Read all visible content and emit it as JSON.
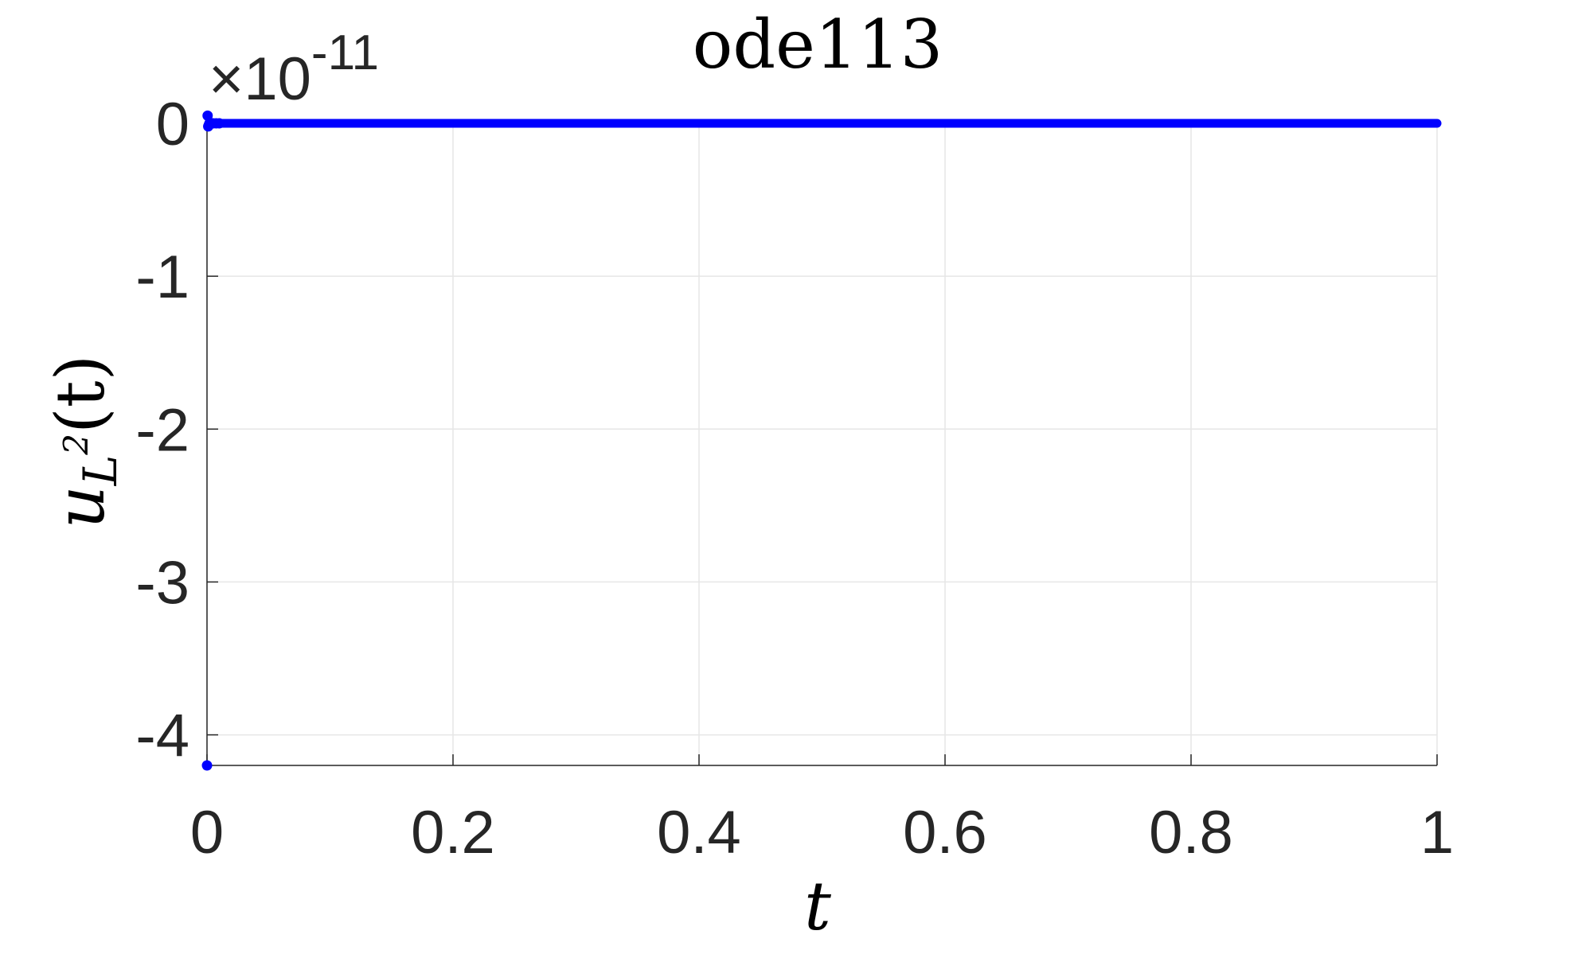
{
  "chart_data": {
    "type": "scatter",
    "title": "ode113",
    "xlabel": "t",
    "ylabel": {
      "base": "u",
      "subscript": "L",
      "superscript": "2",
      "argument": "(t)"
    },
    "exponent_label": {
      "prefix": "×10",
      "power": "-11"
    },
    "xlim": [
      0,
      1
    ],
    "ylim": [
      -4.2,
      0
    ],
    "x_ticks": [
      0,
      0.2,
      0.4,
      0.6,
      0.8,
      1
    ],
    "x_tick_labels": [
      "0",
      "0.2",
      "0.4",
      "0.6",
      "0.8",
      "1"
    ],
    "y_ticks": [
      0,
      -1,
      -2,
      -3,
      -4
    ],
    "y_tick_labels": [
      "0",
      "-1",
      "-2",
      "-3",
      "-4"
    ],
    "grid": true,
    "series": [
      {
        "color": "#0000ff",
        "marker": "dot",
        "x": [
          0,
          0.0005,
          0.001,
          0.0015,
          0.002,
          0.003,
          0.004,
          0.005,
          0.0075,
          0.01
        ],
        "y": [
          -4.2,
          0.05,
          -0.02,
          -0.01,
          0,
          0,
          0,
          0,
          0,
          0
        ],
        "constant_after": {
          "from": 0.01,
          "to": 1,
          "value": 0
        }
      }
    ]
  }
}
